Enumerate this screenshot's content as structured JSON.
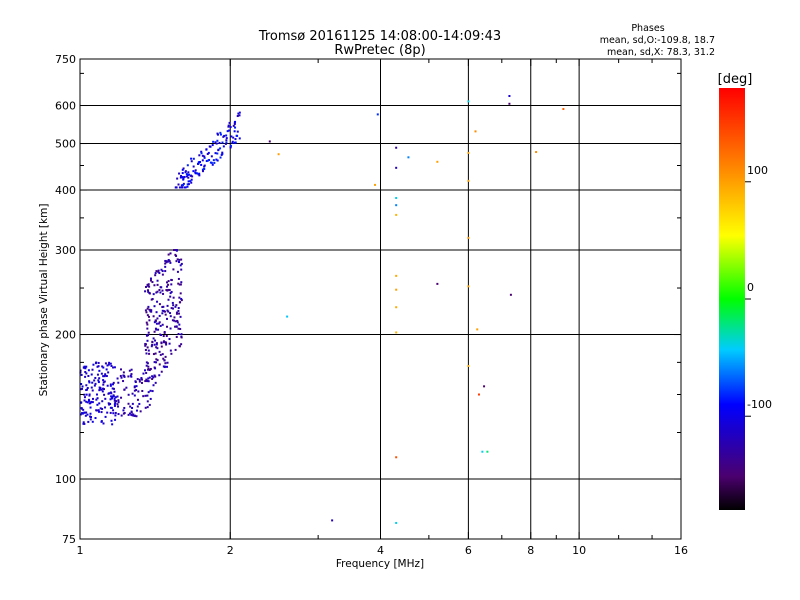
{
  "chart_data": {
    "type": "scatter",
    "title": "Tromsø 20161125 14:08:00-14:09:43",
    "subtitle": "RwPretec (8p)",
    "xlabel": "Frequency [MHz]",
    "ylabel": "Stationary phase Virtual Height [km]",
    "x_scale": "log",
    "y_scale": "log",
    "xlim": [
      1,
      16
    ],
    "ylim": [
      75,
      750
    ],
    "x_ticks": [
      1,
      2,
      4,
      6,
      8,
      10,
      16
    ],
    "y_ticks": [
      75,
      100,
      200,
      300,
      400,
      500,
      600,
      750
    ],
    "x_grid": [
      2,
      4,
      6,
      8,
      10
    ],
    "y_grid": [
      100,
      200,
      300,
      400,
      500,
      600
    ],
    "grid": true,
    "phase_stats": {
      "heading": "Phases",
      "o_line": "mean, sd,O:-109.8, 18.7",
      "x_line": "mean, sd,X: 78.3, 31.2"
    },
    "colorbar": {
      "label": "[deg]",
      "range": [
        -180,
        180
      ],
      "ticks": [
        -100,
        0,
        100
      ],
      "position": "right"
    },
    "clusters": [
      {
        "x": [
          1.0,
          1.18
        ],
        "y": [
          130,
          175
        ],
        "count": 170,
        "phase": [
          -120,
          -100
        ]
      },
      {
        "x": [
          1.18,
          1.42
        ],
        "y": [
          135,
          170
        ],
        "count": 90,
        "phase": [
          -135,
          -110
        ]
      },
      {
        "x": [
          1.35,
          1.6
        ],
        "y": [
          160,
          300
        ],
        "count": 260,
        "phase": [
          -145,
          -115
        ]
      },
      {
        "x": [
          1.55,
          2.1
        ],
        "y": [
          405,
          590
        ],
        "count": 150,
        "phase": [
          -120,
          -80
        ]
      }
    ],
    "points": [
      {
        "x": 2.6,
        "y": 218,
        "phase": -45
      },
      {
        "x": 3.2,
        "y": 82,
        "phase": -120
      },
      {
        "x": 3.95,
        "y": 575,
        "phase": -80
      },
      {
        "x": 3.9,
        "y": 410,
        "phase": 100
      },
      {
        "x": 4.3,
        "y": 490,
        "phase": -130
      },
      {
        "x": 4.3,
        "y": 445,
        "phase": -120
      },
      {
        "x": 4.3,
        "y": 385,
        "phase": -40
      },
      {
        "x": 4.3,
        "y": 372,
        "phase": -60
      },
      {
        "x": 4.3,
        "y": 355,
        "phase": 90
      },
      {
        "x": 4.3,
        "y": 265,
        "phase": 95
      },
      {
        "x": 4.3,
        "y": 248,
        "phase": 100
      },
      {
        "x": 4.3,
        "y": 228,
        "phase": 95
      },
      {
        "x": 4.3,
        "y": 202,
        "phase": 90
      },
      {
        "x": 4.3,
        "y": 111,
        "phase": 140
      },
      {
        "x": 4.3,
        "y": 81,
        "phase": -40
      },
      {
        "x": 4.55,
        "y": 468,
        "phase": -60
      },
      {
        "x": 5.2,
        "y": 458,
        "phase": 100
      },
      {
        "x": 5.2,
        "y": 255,
        "phase": -150
      },
      {
        "x": 6.0,
        "y": 612,
        "phase": -40
      },
      {
        "x": 6.0,
        "y": 478,
        "phase": 100
      },
      {
        "x": 6.0,
        "y": 418,
        "phase": 100
      },
      {
        "x": 6.0,
        "y": 318,
        "phase": 105
      },
      {
        "x": 6.0,
        "y": 252,
        "phase": 100
      },
      {
        "x": 6.0,
        "y": 172,
        "phase": 95
      },
      {
        "x": 6.2,
        "y": 530,
        "phase": 110
      },
      {
        "x": 6.25,
        "y": 205,
        "phase": 100
      },
      {
        "x": 6.3,
        "y": 150,
        "phase": 150
      },
      {
        "x": 6.45,
        "y": 156,
        "phase": -150
      },
      {
        "x": 6.4,
        "y": 114,
        "phase": -40
      },
      {
        "x": 6.55,
        "y": 114,
        "phase": -20
      },
      {
        "x": 7.25,
        "y": 628,
        "phase": -110
      },
      {
        "x": 7.25,
        "y": 605,
        "phase": -150
      },
      {
        "x": 7.3,
        "y": 242,
        "phase": -150
      },
      {
        "x": 8.2,
        "y": 480,
        "phase": 110
      },
      {
        "x": 9.3,
        "y": 590,
        "phase": 130
      },
      {
        "x": 2.5,
        "y": 475,
        "phase": 100
      },
      {
        "x": 2.4,
        "y": 505,
        "phase": -150
      }
    ]
  }
}
